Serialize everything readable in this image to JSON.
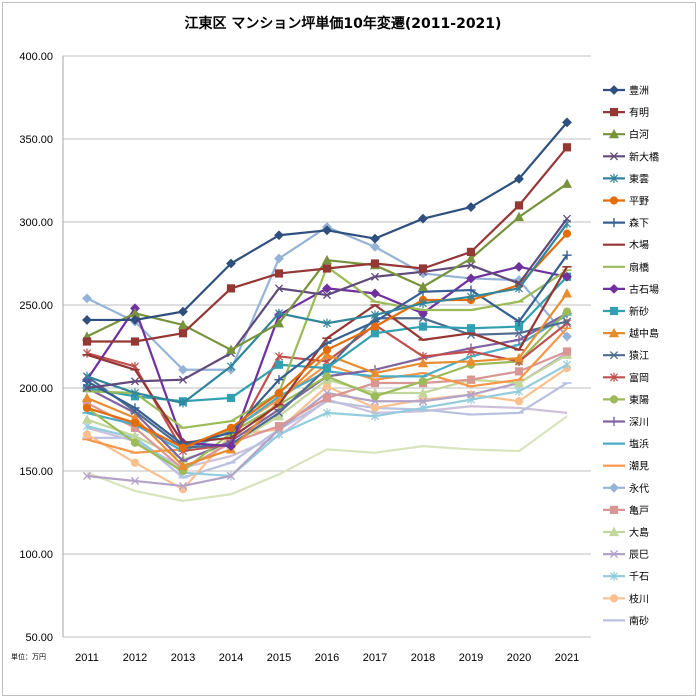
{
  "chart_data": {
    "type": "line",
    "title": "江東区 マンション坪単価10年変遷(2011-2021)",
    "unit_label": "単位：万円",
    "ylim": [
      50,
      400
    ],
    "y_ticks": [
      "50.00",
      "100.00",
      "150.00",
      "200.00",
      "250.00",
      "300.00",
      "350.00",
      "400.00"
    ],
    "categories": [
      "2011",
      "2012",
      "2013",
      "2014",
      "2015",
      "2016",
      "2017",
      "2018",
      "2019",
      "2020",
      "2021"
    ],
    "grid": "horizontal",
    "legend_position": "right",
    "series": [
      {
        "name": "豊洲",
        "color": "#2f4f7f",
        "marker": "diamond",
        "values": [
          241,
          241,
          246,
          275,
          292,
          295,
          290,
          302,
          309,
          326,
          360
        ]
      },
      {
        "name": "有明",
        "color": "#953735",
        "marker": "square",
        "values": [
          228,
          228,
          233,
          260,
          269,
          272,
          275,
          272,
          282,
          310,
          345
        ]
      },
      {
        "name": "白河",
        "color": "#77933c",
        "marker": "triangle",
        "values": [
          231,
          245,
          238,
          223,
          239,
          277,
          274,
          261,
          278,
          303,
          323
        ]
      },
      {
        "name": "新大橋",
        "color": "#604a7b",
        "marker": "x",
        "values": [
          200,
          204,
          205,
          221,
          260,
          256,
          267,
          270,
          274,
          263,
          302
        ]
      },
      {
        "name": "東雲",
        "color": "#31859c",
        "marker": "star",
        "values": [
          207,
          197,
          191,
          213,
          245,
          239,
          244,
          251,
          255,
          260,
          299
        ]
      },
      {
        "name": "平野",
        "color": "#e46c0a",
        "marker": "circle",
        "values": [
          188,
          179,
          164,
          176,
          197,
          223,
          237,
          253,
          253,
          262,
          293
        ]
      },
      {
        "name": "森下",
        "color": "#376092",
        "marker": "plus",
        "values": [
          204,
          188,
          166,
          173,
          205,
          227,
          240,
          258,
          259,
          240,
          280
        ]
      },
      {
        "name": "木場",
        "color": "#963634",
        "marker": "dash",
        "values": [
          220,
          211,
          167,
          170,
          190,
          230,
          250,
          229,
          233,
          223,
          273
        ]
      },
      {
        "name": "扇橋",
        "color": "#9bbb59",
        "marker": "dash",
        "values": [
          198,
          197,
          176,
          180,
          197,
          273,
          252,
          247,
          247,
          252,
          271
        ]
      },
      {
        "name": "古石場",
        "color": "#7030a0",
        "marker": "diamond",
        "values": [
          205,
          248,
          167,
          165,
          244,
          260,
          257,
          245,
          266,
          273,
          267
        ]
      },
      {
        "name": "新砂",
        "color": "#31a0b2",
        "marker": "square",
        "values": [
          200,
          195,
          192,
          194,
          214,
          212,
          233,
          237,
          236,
          237,
          267
        ]
      },
      {
        "name": "越中島",
        "color": "#e88c2f",
        "marker": "triangle",
        "values": [
          194,
          182,
          153,
          163,
          192,
          220,
          209,
          215,
          216,
          218,
          257
        ]
      },
      {
        "name": "猿江",
        "color": "#4f6c8f",
        "marker": "x",
        "values": [
          207,
          186,
          164,
          166,
          185,
          212,
          242,
          242,
          232,
          233,
          240
        ]
      },
      {
        "name": "富岡",
        "color": "#c0504d",
        "marker": "star",
        "values": [
          221,
          213,
          162,
          166,
          219,
          216,
          238,
          219,
          222,
          216,
          239
        ]
      },
      {
        "name": "東陽",
        "color": "#9bbb59",
        "marker": "circle",
        "values": [
          188,
          167,
          150,
          173,
          190,
          207,
          195,
          204,
          214,
          216,
          246
        ]
      },
      {
        "name": "深川",
        "color": "#8064a2",
        "marker": "plus",
        "values": [
          200,
          185,
          156,
          168,
          187,
          207,
          211,
          218,
          224,
          229,
          245
        ]
      },
      {
        "name": "塩浜",
        "color": "#4bacc6",
        "marker": "dash",
        "values": [
          185,
          178,
          162,
          174,
          195,
          210,
          207,
          207,
          219,
          226,
          244
        ]
      },
      {
        "name": "潮見",
        "color": "#f79646",
        "marker": "dash",
        "values": [
          169,
          161,
          163,
          175,
          193,
          214,
          205,
          209,
          201,
          205,
          236
        ]
      },
      {
        "name": "永代",
        "color": "#95b3d7",
        "marker": "diamond",
        "values": [
          254,
          240,
          211,
          211,
          278,
          297,
          285,
          269,
          266,
          265,
          231
        ]
      },
      {
        "name": "亀戸",
        "color": "#d99694",
        "marker": "square",
        "values": [
          191,
          176,
          151,
          167,
          177,
          194,
          203,
          203,
          205,
          210,
          222
        ]
      },
      {
        "name": "大島",
        "color": "#c3d69b",
        "marker": "triangle",
        "values": [
          181,
          171,
          157,
          166,
          183,
          205,
          197,
          197,
          205,
          203,
          220
        ]
      },
      {
        "name": "辰巳",
        "color": "#b3a2c7",
        "marker": "x",
        "values": [
          147,
          144,
          141,
          147,
          175,
          197,
          192,
          192,
          196,
          203,
          221
        ]
      },
      {
        "name": "千石",
        "color": "#93cddd",
        "marker": "star",
        "values": [
          177,
          170,
          149,
          147,
          172,
          185,
          183,
          188,
          193,
          198,
          214
        ]
      },
      {
        "name": "枝川",
        "color": "#fac090",
        "marker": "circle",
        "values": [
          172,
          155,
          139,
          172,
          175,
          201,
          188,
          193,
          196,
          192,
          212
        ]
      },
      {
        "name": "南砂",
        "color": "#b9c0e0",
        "marker": "dash",
        "values": [
          170,
          170,
          146,
          155,
          175,
          192,
          188,
          187,
          184,
          185,
          203
        ]
      },
      {
        "name": "",
        "color": "#ccc0da",
        "marker": "none",
        "values": [
          176,
          168,
          152,
          159,
          171,
          193,
          185,
          186,
          189,
          188,
          185
        ]
      },
      {
        "name": "",
        "color": "#d7e4bd",
        "marker": "none",
        "values": [
          149,
          138,
          132,
          136,
          148,
          163,
          161,
          165,
          163,
          162,
          183
        ]
      }
    ]
  }
}
